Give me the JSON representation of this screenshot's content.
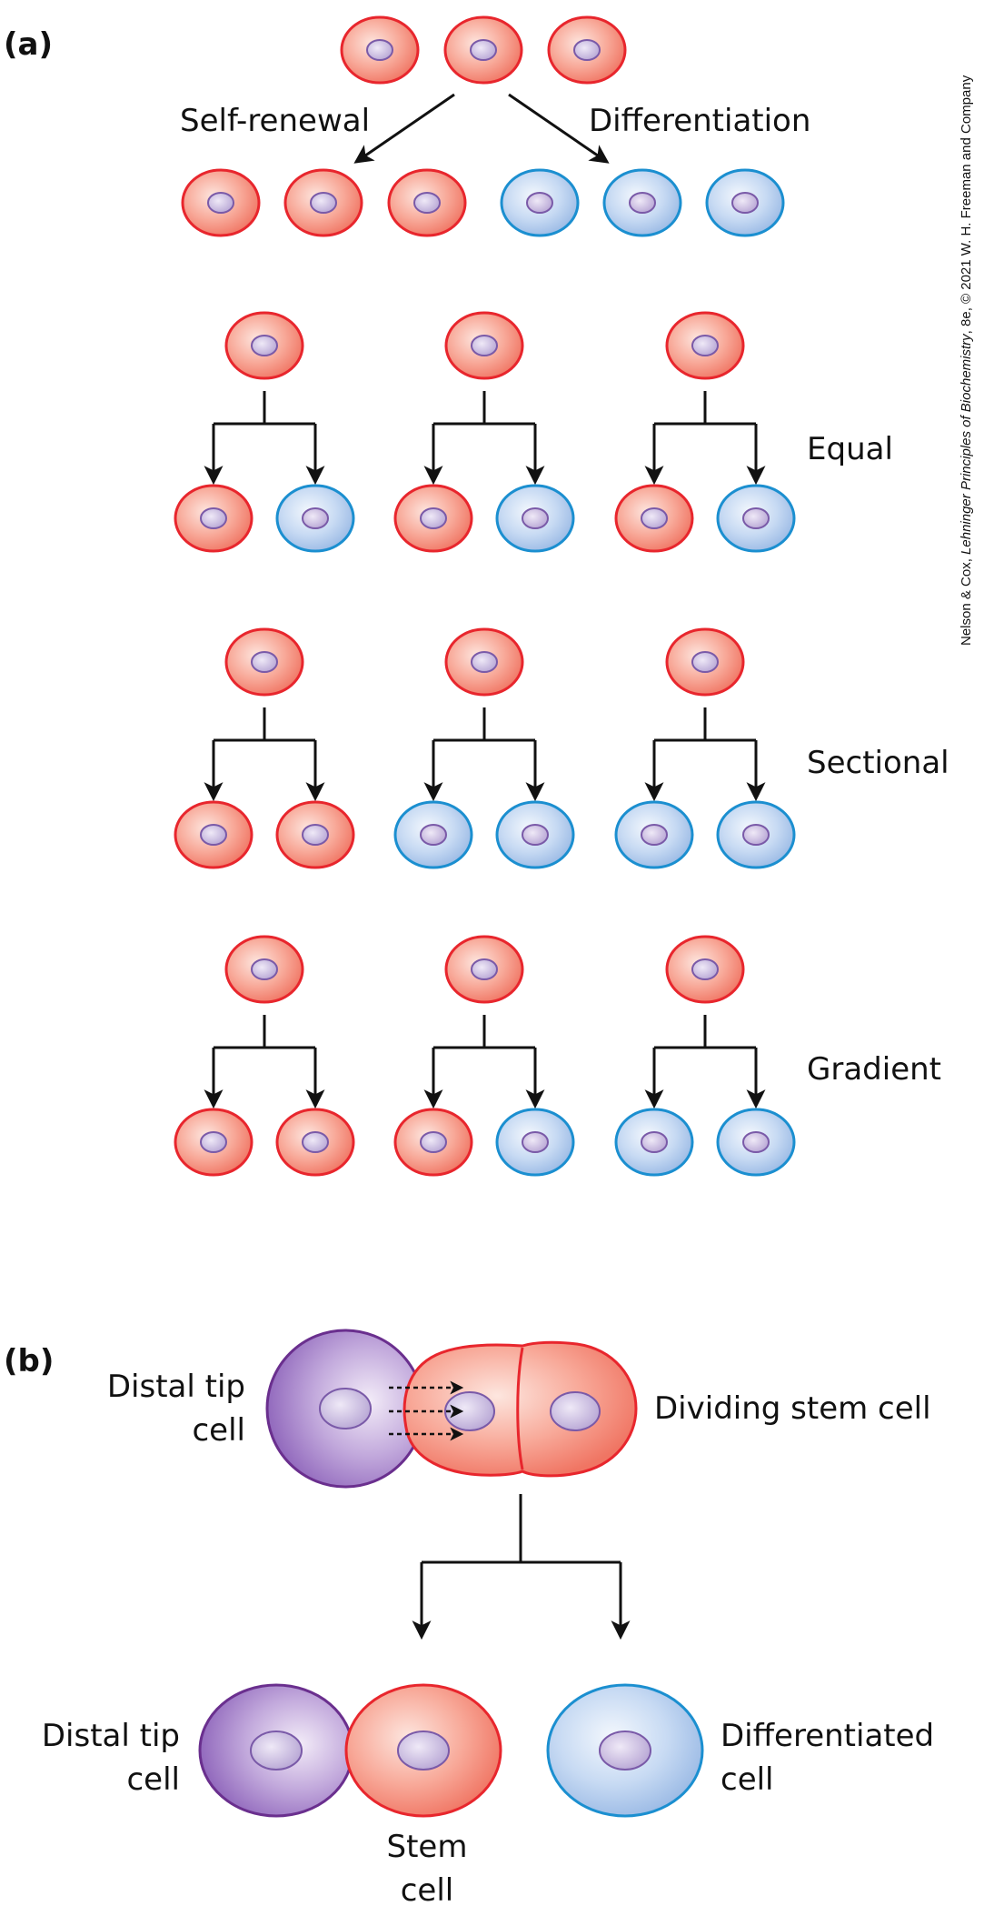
{
  "panel_a": {
    "label": "(a)",
    "top": {
      "self_renewal_label": "Self-renewal",
      "differentiation_label": "Differentiation"
    },
    "rows": [
      {
        "label": "Equal",
        "daughters": [
          [
            "stem",
            "diff"
          ],
          [
            "stem",
            "diff"
          ],
          [
            "stem",
            "diff"
          ]
        ]
      },
      {
        "label": "Sectional",
        "daughters": [
          [
            "stem",
            "stem"
          ],
          [
            "diff",
            "diff"
          ],
          [
            "diff",
            "diff"
          ]
        ]
      },
      {
        "label": "Gradient",
        "daughters": [
          [
            "stem",
            "stem"
          ],
          [
            "stem",
            "diff"
          ],
          [
            "diff",
            "diff"
          ]
        ]
      }
    ]
  },
  "panel_b": {
    "label": "(b)",
    "distal_tip_top": [
      "Distal tip",
      "cell"
    ],
    "dividing_stem_cell": "Dividing stem cell",
    "distal_tip_bottom": [
      "Distal tip",
      "cell"
    ],
    "stem_cell": [
      "Stem",
      "cell"
    ],
    "differentiated_cell": [
      "Differentiated",
      "cell"
    ]
  },
  "credit": {
    "part1": "Nelson & Cox, ",
    "title": "Lehninger Principles of Biochemistry",
    "part2": ", 8e, © 2021 W. H. Freeman and Company"
  },
  "colors": {
    "stem_fill": "#f4897a",
    "stem_stroke": "#e8262d",
    "diff_fill": "#a9c6ea",
    "diff_stroke": "#1b8fd0",
    "distal_fill": "#9a74bf",
    "distal_stroke": "#6a2f8e",
    "nucleus_fill": "#b8a9d6",
    "nucleus_stroke": "#7a5aa8"
  }
}
